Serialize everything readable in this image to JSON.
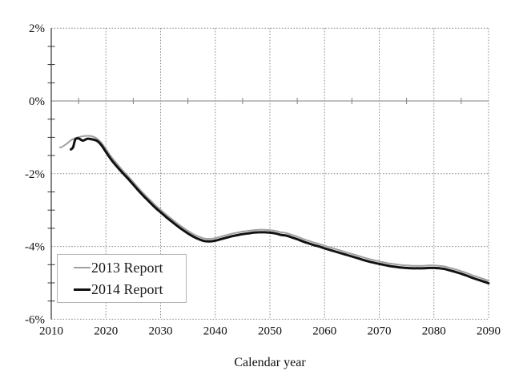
{
  "chart_data": {
    "type": "line",
    "title": "",
    "xlabel": "Calendar year",
    "ylabel": "",
    "xlim": [
      2010,
      2090
    ],
    "ylim": [
      -6,
      2
    ],
    "grid": "dotted",
    "grid_color": "#8c8c8c",
    "zero_line_color": "#808080",
    "axis_color": "#333333",
    "legend_position": "lower-left",
    "x_ticks": [
      2010,
      2020,
      2030,
      2040,
      2050,
      2060,
      2070,
      2080,
      2090
    ],
    "x_tick_labels": [
      "2010",
      "2020",
      "2030",
      "2040",
      "2050",
      "2060",
      "2070",
      "2080",
      "2090"
    ],
    "x_minor_ticks": [
      2015,
      2025,
      2035,
      2045,
      2055,
      2065,
      2075,
      2085
    ],
    "y_ticks": [
      2,
      0,
      -2,
      -4,
      -6
    ],
    "y_tick_labels": [
      "2%",
      "0%",
      "-2%",
      "-4%",
      "-6%"
    ],
    "y_minor_ticks": [
      1.5,
      1,
      0.5,
      -0.5,
      -1,
      -1.5,
      -2.5,
      -3,
      -3.5,
      -4.5,
      -5,
      -5.5
    ],
    "series": [
      {
        "name": "2013 Report",
        "color": "#a0a0a0",
        "line_width": 2,
        "points": [
          [
            2011.6,
            -1.28
          ],
          [
            2012,
            -1.26
          ],
          [
            2012.8,
            -1.18
          ],
          [
            2013.6,
            -1.08
          ],
          [
            2014.4,
            -1.02
          ],
          [
            2015.4,
            -0.98
          ],
          [
            2016.4,
            -0.96
          ],
          [
            2017.4,
            -0.97
          ],
          [
            2018.2,
            -1.02
          ],
          [
            2019,
            -1.12
          ],
          [
            2020,
            -1.32
          ],
          [
            2021,
            -1.54
          ],
          [
            2022,
            -1.72
          ],
          [
            2023,
            -1.9
          ],
          [
            2024,
            -2.06
          ],
          [
            2025,
            -2.23
          ],
          [
            2026,
            -2.4
          ],
          [
            2027,
            -2.56
          ],
          [
            2028,
            -2.71
          ],
          [
            2029,
            -2.86
          ],
          [
            2030,
            -2.99
          ],
          [
            2031,
            -3.12
          ],
          [
            2032,
            -3.24
          ],
          [
            2033,
            -3.36
          ],
          [
            2034,
            -3.47
          ],
          [
            2035,
            -3.57
          ],
          [
            2036,
            -3.66
          ],
          [
            2037,
            -3.73
          ],
          [
            2038,
            -3.78
          ],
          [
            2039,
            -3.79
          ],
          [
            2040,
            -3.77
          ],
          [
            2041,
            -3.73
          ],
          [
            2042,
            -3.69
          ],
          [
            2043,
            -3.65
          ],
          [
            2044,
            -3.62
          ],
          [
            2045,
            -3.59
          ],
          [
            2046,
            -3.57
          ],
          [
            2047,
            -3.55
          ],
          [
            2048,
            -3.54
          ],
          [
            2049,
            -3.54
          ],
          [
            2050,
            -3.55
          ],
          [
            2051,
            -3.57
          ],
          [
            2052,
            -3.61
          ],
          [
            2053,
            -3.63
          ],
          [
            2054,
            -3.68
          ],
          [
            2055,
            -3.73
          ],
          [
            2056,
            -3.79
          ],
          [
            2057,
            -3.84
          ],
          [
            2058,
            -3.89
          ],
          [
            2059,
            -3.93
          ],
          [
            2060,
            -3.98
          ],
          [
            2062,
            -4.07
          ],
          [
            2064,
            -4.16
          ],
          [
            2066,
            -4.25
          ],
          [
            2068,
            -4.34
          ],
          [
            2070,
            -4.41
          ],
          [
            2071,
            -4.44
          ],
          [
            2072,
            -4.47
          ],
          [
            2073,
            -4.49
          ],
          [
            2074,
            -4.51
          ],
          [
            2075,
            -4.52
          ],
          [
            2076,
            -4.53
          ],
          [
            2077,
            -4.53
          ],
          [
            2078,
            -4.53
          ],
          [
            2079,
            -4.52
          ],
          [
            2080,
            -4.52
          ],
          [
            2081,
            -4.53
          ],
          [
            2082,
            -4.55
          ],
          [
            2083,
            -4.59
          ],
          [
            2084,
            -4.63
          ],
          [
            2085,
            -4.68
          ],
          [
            2086,
            -4.73
          ],
          [
            2087,
            -4.79
          ],
          [
            2088,
            -4.84
          ],
          [
            2089,
            -4.89
          ],
          [
            2090,
            -4.94
          ]
        ]
      },
      {
        "name": "2014 Report",
        "color": "#111111",
        "line_width": 3,
        "points": [
          [
            2013.6,
            -1.33
          ],
          [
            2014,
            -1.27
          ],
          [
            2014.4,
            -1.06
          ],
          [
            2015,
            -1.03
          ],
          [
            2015.8,
            -1.09
          ],
          [
            2016.6,
            -1.04
          ],
          [
            2017.6,
            -1.06
          ],
          [
            2018.4,
            -1.1
          ],
          [
            2019.2,
            -1.22
          ],
          [
            2020,
            -1.4
          ],
          [
            2021,
            -1.62
          ],
          [
            2022,
            -1.8
          ],
          [
            2023,
            -1.97
          ],
          [
            2024,
            -2.13
          ],
          [
            2025,
            -2.3
          ],
          [
            2026,
            -2.47
          ],
          [
            2027,
            -2.63
          ],
          [
            2028,
            -2.78
          ],
          [
            2029,
            -2.93
          ],
          [
            2030,
            -3.06
          ],
          [
            2031,
            -3.19
          ],
          [
            2032,
            -3.31
          ],
          [
            2033,
            -3.43
          ],
          [
            2034,
            -3.54
          ],
          [
            2035,
            -3.64
          ],
          [
            2036,
            -3.73
          ],
          [
            2037,
            -3.8
          ],
          [
            2038,
            -3.85
          ],
          [
            2039,
            -3.86
          ],
          [
            2040,
            -3.84
          ],
          [
            2041,
            -3.8
          ],
          [
            2042,
            -3.76
          ],
          [
            2043,
            -3.72
          ],
          [
            2044,
            -3.69
          ],
          [
            2045,
            -3.66
          ],
          [
            2046,
            -3.64
          ],
          [
            2047,
            -3.62
          ],
          [
            2048,
            -3.61
          ],
          [
            2049,
            -3.61
          ],
          [
            2050,
            -3.62
          ],
          [
            2051,
            -3.64
          ],
          [
            2052,
            -3.68
          ],
          [
            2053,
            -3.7
          ],
          [
            2054,
            -3.75
          ],
          [
            2055,
            -3.8
          ],
          [
            2056,
            -3.86
          ],
          [
            2057,
            -3.91
          ],
          [
            2058,
            -3.96
          ],
          [
            2059,
            -4.0
          ],
          [
            2060,
            -4.05
          ],
          [
            2062,
            -4.14
          ],
          [
            2064,
            -4.23
          ],
          [
            2066,
            -4.32
          ],
          [
            2068,
            -4.41
          ],
          [
            2070,
            -4.48
          ],
          [
            2071,
            -4.51
          ],
          [
            2072,
            -4.54
          ],
          [
            2073,
            -4.56
          ],
          [
            2074,
            -4.58
          ],
          [
            2075,
            -4.59
          ],
          [
            2076,
            -4.6
          ],
          [
            2077,
            -4.6
          ],
          [
            2078,
            -4.6
          ],
          [
            2079,
            -4.59
          ],
          [
            2080,
            -4.59
          ],
          [
            2081,
            -4.6
          ],
          [
            2082,
            -4.62
          ],
          [
            2083,
            -4.66
          ],
          [
            2084,
            -4.7
          ],
          [
            2085,
            -4.75
          ],
          [
            2086,
            -4.8
          ],
          [
            2087,
            -4.86
          ],
          [
            2088,
            -4.91
          ],
          [
            2089,
            -4.96
          ],
          [
            2090,
            -5.01
          ]
        ]
      }
    ]
  }
}
